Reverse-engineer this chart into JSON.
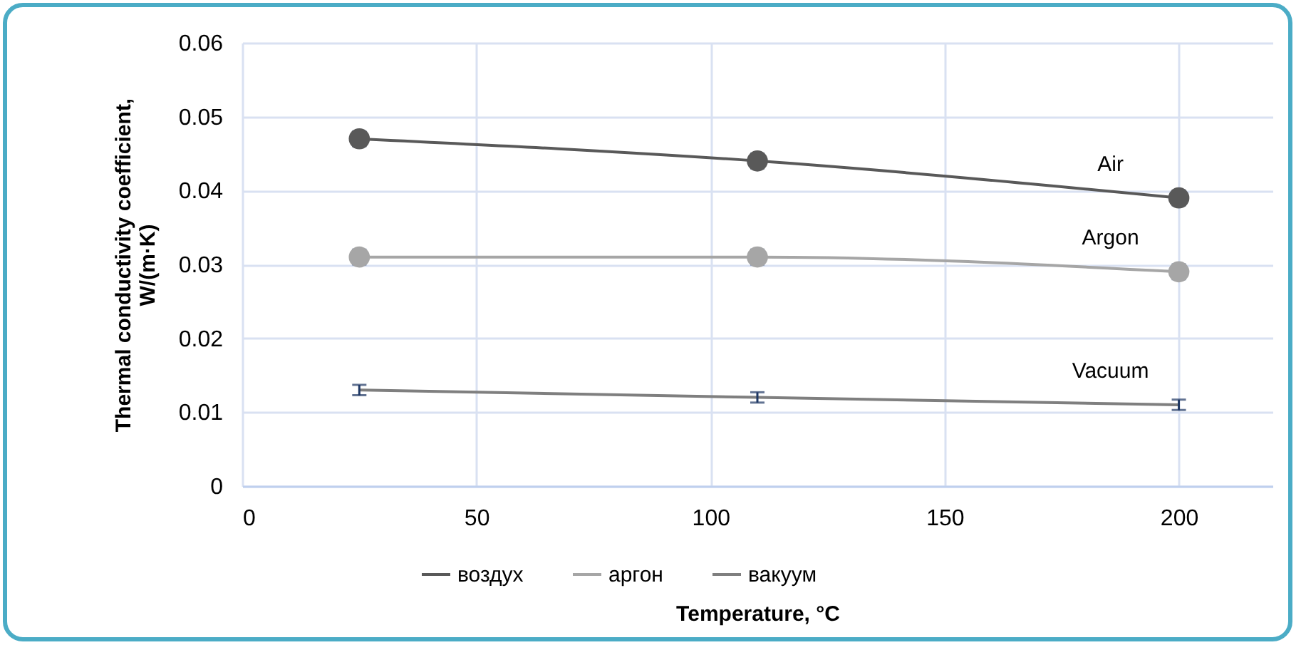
{
  "chart_data": {
    "type": "line",
    "xlabel": "Temperature, °C",
    "ylabel": "Thermal conductivity coefficient, W/(m·K)",
    "x": [
      25,
      110,
      200
    ],
    "series": [
      {
        "name": "воздух",
        "color": "#595959",
        "marker": "circle",
        "values": [
          0.047,
          0.044,
          0.039
        ],
        "errors": [
          0.001,
          0.001,
          0.001
        ]
      },
      {
        "name": "аргон",
        "color": "#a6a6a6",
        "marker": "circle",
        "values": [
          0.031,
          0.031,
          0.029
        ],
        "errors": [
          0.001,
          0.001,
          0.001
        ]
      },
      {
        "name": "вакуум",
        "color": "#7f7f7f",
        "marker": "none",
        "values": [
          0.013,
          0.012,
          0.011
        ],
        "errors": [
          0.0007,
          0.0007,
          0.0007
        ]
      }
    ],
    "annotations": [
      "Air",
      "Argon",
      "Vacuum"
    ],
    "xlim": [
      0,
      220
    ],
    "xticks": [
      0,
      50,
      100,
      150,
      200
    ],
    "ylim": [
      0,
      0.06
    ],
    "yticks": [
      0,
      0.01,
      0.02,
      0.03,
      0.04,
      0.05,
      0.06
    ],
    "grid": true,
    "legend": "bottom"
  }
}
